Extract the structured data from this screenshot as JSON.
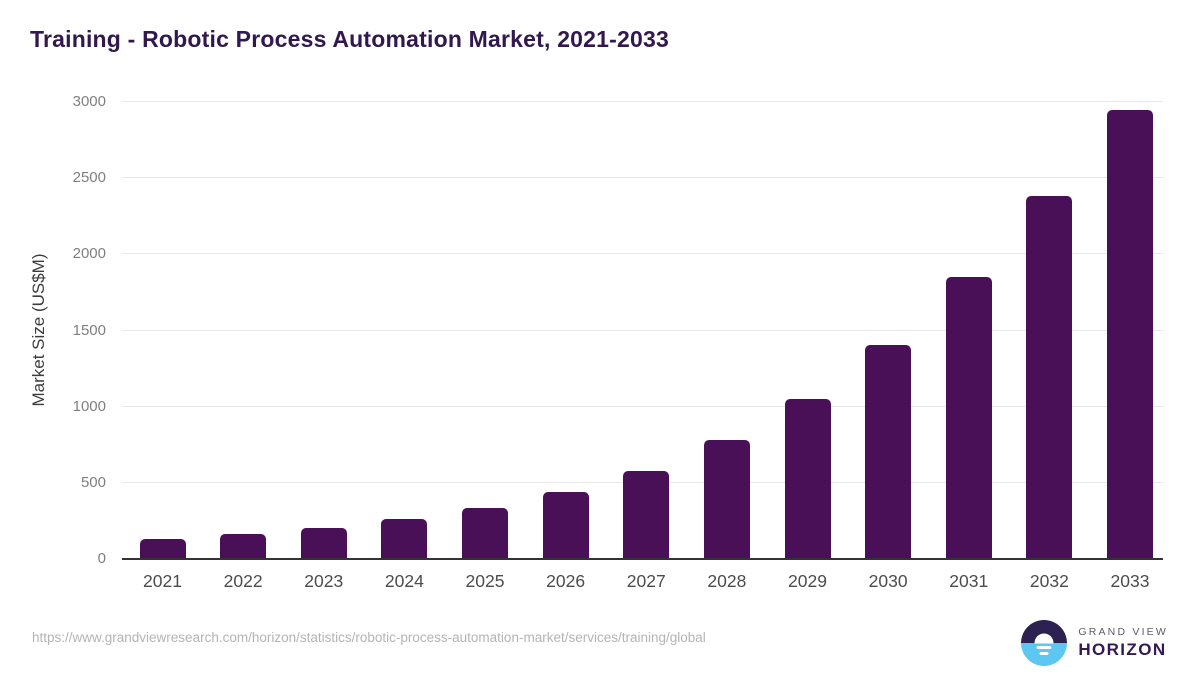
{
  "title": "Training - Robotic Process Automation Market, 2021-2033",
  "footer": {
    "source_url": "https://www.grandviewresearch.com/horizon/statistics/robotic-process-automation-market/services/training/global"
  },
  "logo": {
    "line1": "GRAND VIEW",
    "line2": "HORIZON"
  },
  "colors": {
    "bar": "#4a1057",
    "title": "#31184d",
    "gridline": "#e8e8e8",
    "axis_line": "#333333",
    "y_tick_label": "#7f7f7f",
    "x_tick_label": "#4c4c4c",
    "url_text": "#b4b4b4",
    "logo_navy": "#2c2150",
    "logo_blue": "#5dc6f1"
  },
  "chart_data": {
    "type": "bar",
    "title": "Training - Robotic Process Automation Market, 2021-2033",
    "categories": [
      "2021",
      "2022",
      "2023",
      "2024",
      "2025",
      "2026",
      "2027",
      "2028",
      "2029",
      "2030",
      "2031",
      "2032",
      "2033"
    ],
    "values": [
      123,
      156,
      196,
      254,
      327,
      432,
      574,
      776,
      1045,
      1399,
      1842,
      2378,
      2939
    ],
    "xlabel": "",
    "ylabel": "Market Size (US$M)",
    "ylim": [
      0,
      3000
    ],
    "yticks": [
      0,
      500,
      1000,
      1500,
      2000,
      2500,
      3000
    ],
    "grid": true,
    "legend": false,
    "bar_color": "#4a1057"
  }
}
